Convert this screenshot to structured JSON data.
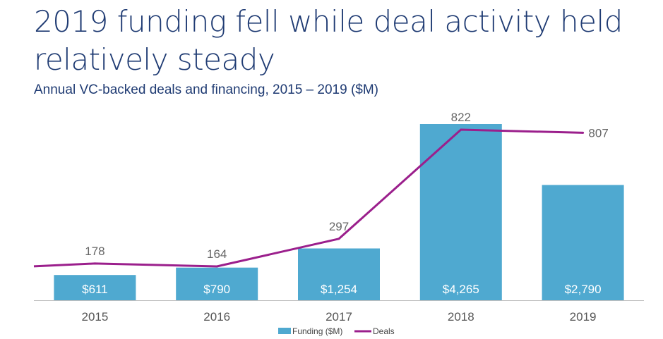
{
  "chart_data": {
    "type": "bar",
    "title": "2019 funding fell while deal activity held relatively steady",
    "subtitle": "Annual VC-backed deals and financing, 2015 – 2019 ($M)",
    "categories": [
      "2015",
      "2016",
      "2017",
      "2018",
      "2019"
    ],
    "series": [
      {
        "name": "Funding ($M)",
        "type": "bar",
        "values": [
          611,
          790,
          1254,
          4265,
          2790
        ],
        "labels": [
          "$611",
          "$790",
          "$1,254",
          "$4,265",
          "$2,790"
        ],
        "color": "#4fa9d0"
      },
      {
        "name": "Deals",
        "type": "line",
        "values": [
          178,
          164,
          297,
          822,
          807
        ],
        "labels": [
          "178",
          "164",
          "297",
          "822",
          "807"
        ],
        "color": "#9b1f8c"
      }
    ],
    "legend_position": "bottom",
    "grid": false
  }
}
